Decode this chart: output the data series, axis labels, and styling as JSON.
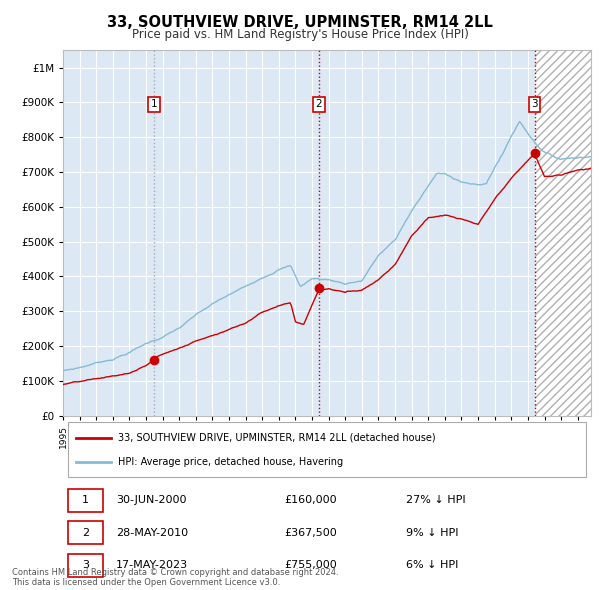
{
  "title": "33, SOUTHVIEW DRIVE, UPMINSTER, RM14 2LL",
  "subtitle": "Price paid vs. HM Land Registry's House Price Index (HPI)",
  "footer": "Contains HM Land Registry data © Crown copyright and database right 2024.\nThis data is licensed under the Open Government Licence v3.0.",
  "legend_line1": "33, SOUTHVIEW DRIVE, UPMINSTER, RM14 2LL (detached house)",
  "legend_line2": "HPI: Average price, detached house, Havering",
  "sales": [
    {
      "num": 1,
      "date": "30-JUN-2000",
      "price": 160000,
      "note": "27% ↓ HPI",
      "x": 2000.5
    },
    {
      "num": 2,
      "date": "28-MAY-2010",
      "price": 367500,
      "note": "9% ↓ HPI",
      "x": 2010.4
    },
    {
      "num": 3,
      "date": "17-MAY-2023",
      "price": 755000,
      "note": "6% ↓ HPI",
      "x": 2023.4
    }
  ],
  "hpi_color": "#85bbd4",
  "price_color": "#cc0000",
  "sale_dot_color": "#cc0000",
  "bg_region_color": "#dce9f5",
  "ylim": [
    0,
    1050000
  ],
  "xlim_start": 1995,
  "xlim_end": 2026.8,
  "yticks": [
    0,
    100000,
    200000,
    300000,
    400000,
    500000,
    600000,
    700000,
    800000,
    900000,
    1000000
  ],
  "ytick_labels": [
    "£0",
    "£100K",
    "£200K",
    "£300K",
    "£400K",
    "£500K",
    "£600K",
    "£700K",
    "£800K",
    "£900K",
    "£1M"
  ]
}
